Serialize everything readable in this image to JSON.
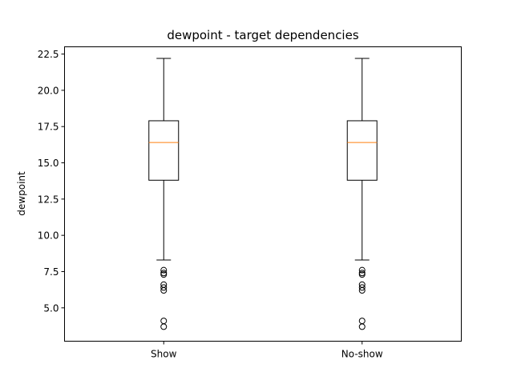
{
  "chart_data": {
    "type": "box",
    "title": "dewpoint - target dependencies",
    "xlabel": "",
    "ylabel": "dewpoint",
    "ylim": [
      2.7,
      23.0
    ],
    "yticks": [
      5.0,
      7.5,
      10.0,
      12.5,
      15.0,
      17.5,
      20.0,
      22.5
    ],
    "ytick_labels": [
      "5.0",
      "7.5",
      "10.0",
      "12.5",
      "15.0",
      "17.5",
      "20.0",
      "22.5"
    ],
    "categories": [
      "Show",
      "No-show"
    ],
    "boxes": [
      {
        "category": "Show",
        "whisker_low": 8.3,
        "q1": 13.8,
        "median": 16.4,
        "q3": 17.9,
        "whisker_high": 22.2,
        "outliers": [
          7.6,
          7.4,
          7.3,
          6.6,
          6.4,
          6.2,
          4.1,
          3.7
        ]
      },
      {
        "category": "No-show",
        "whisker_low": 8.3,
        "q1": 13.8,
        "median": 16.4,
        "q3": 17.9,
        "whisker_high": 22.2,
        "outliers": [
          7.6,
          7.4,
          7.3,
          6.6,
          6.4,
          6.2,
          4.1,
          3.7
        ]
      }
    ],
    "grid": false,
    "colors": {
      "box": "#000000",
      "median": "#ff7f0e",
      "outlier": "#000000"
    }
  }
}
